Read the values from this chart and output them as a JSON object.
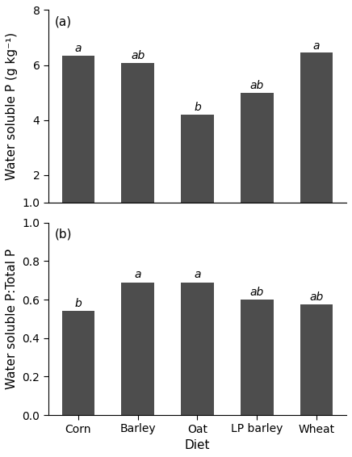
{
  "categories": [
    "Corn",
    "Barley",
    "Oat",
    "LP barley",
    "Wheat"
  ],
  "panel_a": {
    "values": [
      6.35,
      6.07,
      4.2,
      5.0,
      6.45
    ],
    "letters": [
      "a",
      "ab",
      "b",
      "ab",
      "a"
    ],
    "ylabel": "Water soluble P (g kg⁻¹)",
    "label": "(a)",
    "ylim": [
      1.0,
      8.0
    ],
    "yticks": [
      2.0,
      4.0,
      6.0,
      8.0
    ],
    "ybreak": 1.0
  },
  "panel_b": {
    "values": [
      0.54,
      0.69,
      0.69,
      0.6,
      0.575
    ],
    "letters": [
      "b",
      "a",
      "a",
      "ab",
      "ab"
    ],
    "ylabel": "Water soluble P:Total P",
    "label": "(b)",
    "ylim": [
      0.0,
      1.0
    ],
    "yticks": [
      0.0,
      0.2,
      0.4,
      0.6,
      0.8,
      1.0
    ]
  },
  "xlabel": "Diet",
  "bar_color": "#4d4d4d",
  "bar_width": 0.55,
  "letter_fontsize": 10,
  "label_fontsize": 11,
  "tick_fontsize": 10,
  "axis_label_fontsize": 11
}
